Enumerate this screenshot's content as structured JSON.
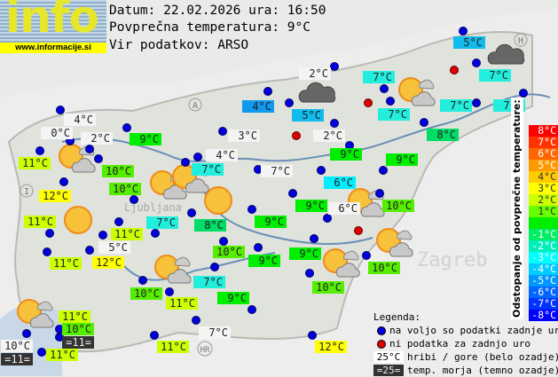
{
  "logo": {
    "text": "info",
    "url": "www.informacije.si"
  },
  "header": {
    "date_line": "Datum: 22.02.2026 ura: 16:50",
    "avg_line": "Povprečna temperatura: 9°C",
    "source_line": "Vir podatkov: ARSO"
  },
  "map_labels": [
    "A",
    "H",
    "I",
    "HR",
    "Ljubljana",
    "Zagreb"
  ],
  "stations": [
    {
      "t": "4°C",
      "bg": "#f4f4f4"
    },
    {
      "t": "0°C",
      "bg": "#f4f4f4"
    },
    {
      "t": "2°C",
      "bg": "#f4f4f4"
    },
    {
      "t": "11°C",
      "bg": "#ccff00"
    },
    {
      "t": "9°C",
      "bg": "#00ee00"
    },
    {
      "t": "10°C",
      "bg": "#55ee00"
    },
    {
      "t": "10°C",
      "bg": "#55ee00"
    },
    {
      "t": "12°C",
      "bg": "#ffff00"
    },
    {
      "t": "11°C",
      "bg": "#ccff00"
    },
    {
      "t": "11°C",
      "bg": "#ccff00"
    },
    {
      "t": "5°C",
      "bg": "#f4f4f4"
    },
    {
      "t": "12°C",
      "bg": "#ffff00"
    },
    {
      "t": "11°C",
      "bg": "#ccff00"
    },
    {
      "t": "7°C",
      "bg": "#22eedd"
    },
    {
      "t": "8°C",
      "bg": "#00dd66"
    },
    {
      "t": "4°C",
      "bg": "#f4f4f4"
    },
    {
      "t": "7°C",
      "bg": "#22eedd"
    },
    {
      "t": "3°C",
      "bg": "#f4f4f4"
    },
    {
      "t": "4°C",
      "bg": "#1199ee"
    },
    {
      "t": "2°C",
      "bg": "#f4f4f4"
    },
    {
      "t": "5°C",
      "bg": "#11bbee"
    },
    {
      "t": "2°C",
      "bg": "#f4f4f4"
    },
    {
      "t": "7°C",
      "bg": "#22eedd"
    },
    {
      "t": "7°C",
      "bg": "#22eedd"
    },
    {
      "t": "5°C",
      "bg": "#11bbee"
    },
    {
      "t": "7°C",
      "bg": "#22eedd"
    },
    {
      "t": "7°C",
      "bg": "#22eedd"
    },
    {
      "t": "7°C",
      "bg": "#22eedd"
    },
    {
      "t": "8°C",
      "bg": "#00dd66"
    },
    {
      "t": "9°C",
      "bg": "#00ee00"
    },
    {
      "t": "9°C",
      "bg": "#00ee00"
    },
    {
      "t": "7°C",
      "bg": "#f4f4f4"
    },
    {
      "t": "6°C",
      "bg": "#00eeff"
    },
    {
      "t": "9°C",
      "bg": "#00ee00"
    },
    {
      "t": "6°C",
      "bg": "#f4f4f4"
    },
    {
      "t": "10°C",
      "bg": "#55ee00"
    },
    {
      "t": "9°C",
      "bg": "#00ee00"
    },
    {
      "t": "10°C",
      "bg": "#55ee00"
    },
    {
      "t": "9°C",
      "bg": "#00ee00"
    },
    {
      "t": "9°C",
      "bg": "#00ee00"
    },
    {
      "t": "10°C",
      "bg": "#55ee00"
    },
    {
      "t": "10°C",
      "bg": "#55ee00"
    },
    {
      "t": "7°C",
      "bg": "#22eedd"
    },
    {
      "t": "10°C",
      "bg": "#55ee00"
    },
    {
      "t": "11°C",
      "bg": "#ccff00"
    },
    {
      "t": "9°C",
      "bg": "#00ee00"
    },
    {
      "t": "7°C",
      "bg": "#f4f4f4"
    },
    {
      "t": "11°C",
      "bg": "#ccff00"
    },
    {
      "t": "12°C",
      "bg": "#ffff00"
    },
    {
      "t": "11°C",
      "bg": "#ccff00"
    },
    {
      "t": "10°C",
      "bg": "#55ee00"
    },
    {
      "t": "=11=",
      "bg": "#333333"
    },
    {
      "t": "10°C",
      "bg": "#f4f4f4"
    },
    {
      "t": "=11=",
      "bg": "#333333"
    },
    {
      "t": "11°C",
      "bg": "#ccff00"
    }
  ],
  "scale": {
    "title": "Odstopanje od povprečne temperature:",
    "items": [
      {
        "t": "8°C",
        "c": "#ff0000"
      },
      {
        "t": "7°C",
        "c": "#ff3300"
      },
      {
        "t": "6°C",
        "c": "#ff6600"
      },
      {
        "t": "5°C",
        "c": "#ff9900"
      },
      {
        "t": "4°C",
        "c": "#ffcc00"
      },
      {
        "t": "3°C",
        "c": "#ffff00"
      },
      {
        "t": "2°C",
        "c": "#ccff00"
      },
      {
        "t": "1°C",
        "c": "#66ff00"
      },
      {
        "t": "",
        "c": "#00ee00"
      },
      {
        "t": "-1°C",
        "c": "#00ee66"
      },
      {
        "t": "-2°C",
        "c": "#00eebb"
      },
      {
        "t": "-3°C",
        "c": "#00ffff"
      },
      {
        "t": "-4°C",
        "c": "#00ccff"
      },
      {
        "t": "-5°C",
        "c": "#0099ff"
      },
      {
        "t": "-6°C",
        "c": "#0066ff"
      },
      {
        "t": "-7°C",
        "c": "#0033ff"
      },
      {
        "t": "-8°C",
        "c": "#0000ff"
      }
    ]
  },
  "legend": {
    "title": "Legenda:",
    "blue": "na voljo so podatki zadnje ure",
    "red": "ni podatka za zadnjo uro",
    "mountain_sample": "25°C",
    "mountain_text": "hribi / gore (belo ozadje)",
    "sea_sample": "=25=",
    "sea_text": "temp. morja (temno ozadje)"
  },
  "colors": {
    "station_dot": "#0000dd",
    "missing_dot": "#dd0000"
  }
}
